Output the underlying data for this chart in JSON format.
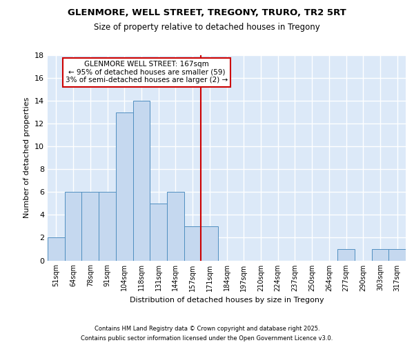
{
  "title1": "GLENMORE, WELL STREET, TREGONY, TRURO, TR2 5RT",
  "title2": "Size of property relative to detached houses in Tregony",
  "xlabel": "Distribution of detached houses by size in Tregony",
  "ylabel": "Number of detached properties",
  "footer1": "Contains HM Land Registry data © Crown copyright and database right 2025.",
  "footer2": "Contains public sector information licensed under the Open Government Licence v3.0.",
  "categories": [
    "51sqm",
    "64sqm",
    "78sqm",
    "91sqm",
    "104sqm",
    "118sqm",
    "131sqm",
    "144sqm",
    "157sqm",
    "171sqm",
    "184sqm",
    "197sqm",
    "210sqm",
    "224sqm",
    "237sqm",
    "250sqm",
    "264sqm",
    "277sqm",
    "290sqm",
    "303sqm",
    "317sqm"
  ],
  "values": [
    2,
    6,
    6,
    6,
    13,
    14,
    5,
    6,
    3,
    3,
    0,
    0,
    0,
    0,
    0,
    0,
    0,
    1,
    0,
    1,
    1
  ],
  "bar_color": "#c5d8ef",
  "bar_edge_color": "#4f8ec0",
  "background_color": "#dce9f8",
  "grid_color": "#ffffff",
  "annotation_text": "GLENMORE WELL STREET: 167sqm\n← 95% of detached houses are smaller (59)\n3% of semi-detached houses are larger (2) →",
  "vline_x": 8.5,
  "vline_color": "#cc0000",
  "annotation_box_color": "#ffffff",
  "annotation_box_edge": "#cc0000",
  "ylim": [
    0,
    18
  ],
  "yticks": [
    0,
    2,
    4,
    6,
    8,
    10,
    12,
    14,
    16,
    18
  ]
}
